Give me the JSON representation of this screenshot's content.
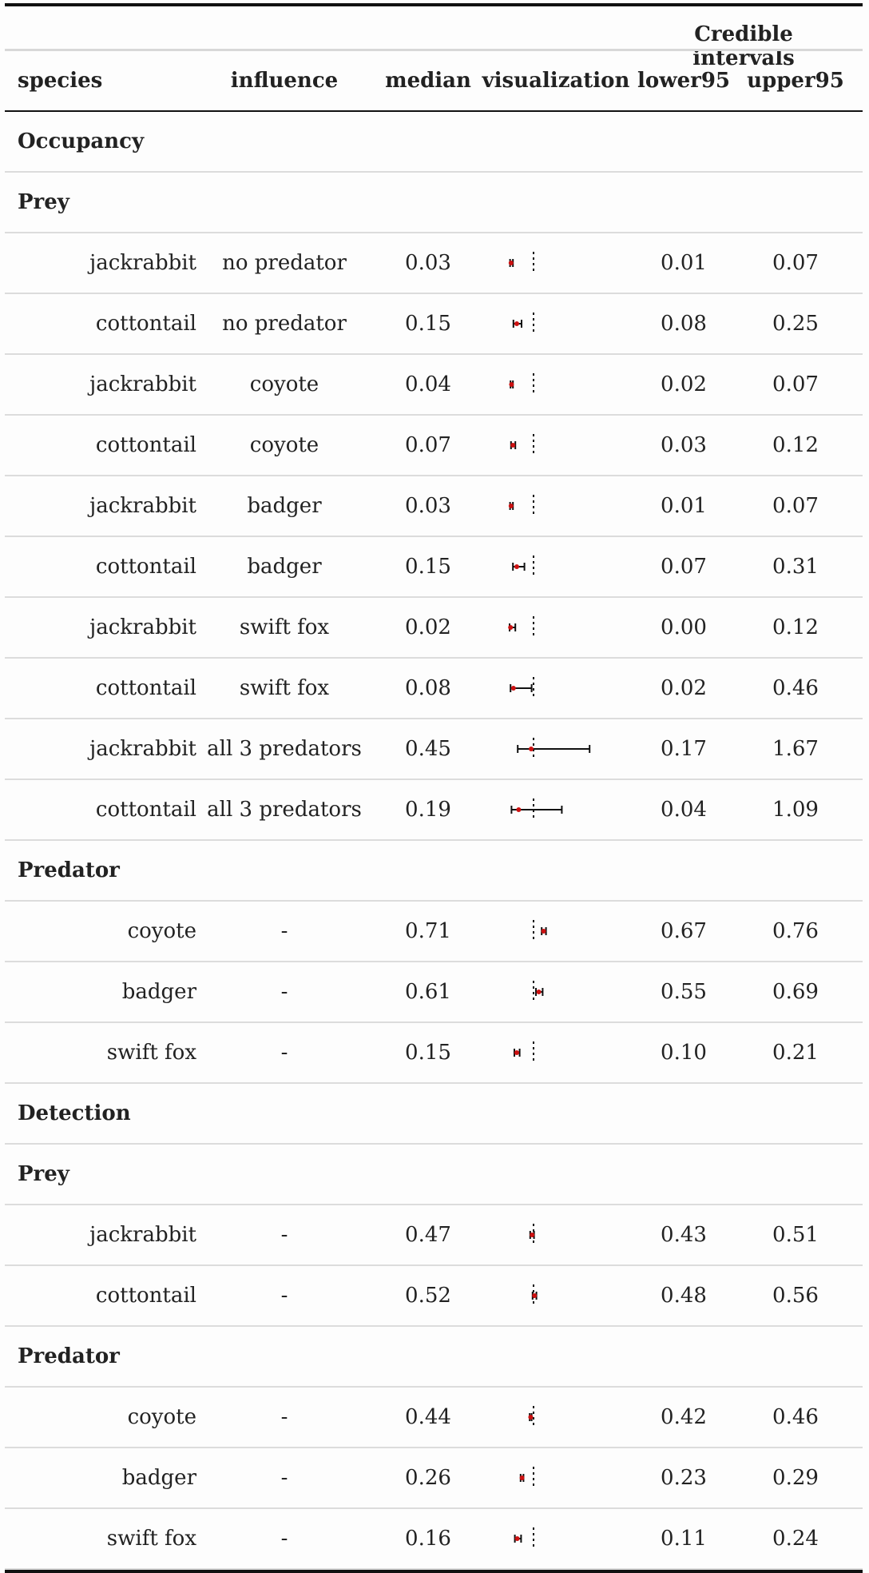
{
  "spanner_label": "Credible intervals",
  "headers": {
    "species": "species",
    "influence": "influence",
    "median": "median",
    "visualization": "visualization",
    "lower95": "lower95",
    "upper95": "upper95"
  },
  "sections": [
    {
      "label": "Occupancy",
      "groups": [
        {
          "label": "Prey",
          "rows": [
            {
              "species": "jackrabbit",
              "influence": "no predator",
              "median": "0.03",
              "lower95": "0.01",
              "upper95": "0.07"
            },
            {
              "species": "cottontail",
              "influence": "no predator",
              "median": "0.15",
              "lower95": "0.08",
              "upper95": "0.25"
            },
            {
              "species": "jackrabbit",
              "influence": "coyote",
              "median": "0.04",
              "lower95": "0.02",
              "upper95": "0.07"
            },
            {
              "species": "cottontail",
              "influence": "coyote",
              "median": "0.07",
              "lower95": "0.03",
              "upper95": "0.12"
            },
            {
              "species": "jackrabbit",
              "influence": "badger",
              "median": "0.03",
              "lower95": "0.01",
              "upper95": "0.07"
            },
            {
              "species": "cottontail",
              "influence": "badger",
              "median": "0.15",
              "lower95": "0.07",
              "upper95": "0.31"
            },
            {
              "species": "jackrabbit",
              "influence": "swift fox",
              "median": "0.02",
              "lower95": "0.00",
              "upper95": "0.12"
            },
            {
              "species": "cottontail",
              "influence": "swift fox",
              "median": "0.08",
              "lower95": "0.02",
              "upper95": "0.46"
            },
            {
              "species": "jackrabbit",
              "influence": "all 3 predators",
              "median": "0.45",
              "lower95": "0.17",
              "upper95": "1.67"
            },
            {
              "species": "cottontail",
              "influence": "all 3 predators",
              "median": "0.19",
              "lower95": "0.04",
              "upper95": "1.09"
            }
          ]
        },
        {
          "label": "Predator",
          "rows": [
            {
              "species": "coyote",
              "influence": "-",
              "median": "0.71",
              "lower95": "0.67",
              "upper95": "0.76"
            },
            {
              "species": "badger",
              "influence": "-",
              "median": "0.61",
              "lower95": "0.55",
              "upper95": "0.69"
            },
            {
              "species": "swift fox",
              "influence": "-",
              "median": "0.15",
              "lower95": "0.10",
              "upper95": "0.21"
            }
          ]
        }
      ]
    },
    {
      "label": "Detection",
      "groups": [
        {
          "label": "Prey",
          "rows": [
            {
              "species": "jackrabbit",
              "influence": "-",
              "median": "0.47",
              "lower95": "0.43",
              "upper95": "0.51"
            },
            {
              "species": "cottontail",
              "influence": "-",
              "median": "0.52",
              "lower95": "0.48",
              "upper95": "0.56"
            }
          ]
        },
        {
          "label": "Predator",
          "rows": [
            {
              "species": "coyote",
              "influence": "-",
              "median": "0.44",
              "lower95": "0.42",
              "upper95": "0.46"
            },
            {
              "species": "badger",
              "influence": "-",
              "median": "0.26",
              "lower95": "0.23",
              "upper95": "0.29"
            },
            {
              "species": "swift fox",
              "influence": "-",
              "median": "0.16",
              "lower95": "0.11",
              "upper95": "0.24"
            }
          ]
        }
      ]
    }
  ],
  "viz": {
    "reference_value": 0.5,
    "domain": [
      0,
      2
    ],
    "point_color": "#cc1111",
    "line_color": "#111111",
    "ref_line_color": "#111111"
  }
}
